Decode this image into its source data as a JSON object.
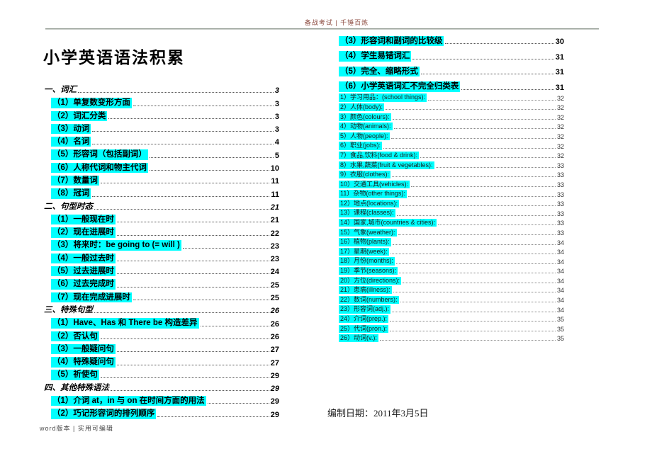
{
  "header": {
    "watermark": "备战考试 | 千锤百炼"
  },
  "title": "小学英语语法积累",
  "colors": {
    "highlight": "#00ffff",
    "watermark_text": "#8f4f44",
    "rule": "#969e96"
  },
  "toc": {
    "left": [
      {
        "kind": "section",
        "label": "一、词汇",
        "page": "3"
      },
      {
        "kind": "entry",
        "label": "（1）单复数变形方面",
        "page": "3"
      },
      {
        "kind": "entry",
        "label": "（2）词汇分类",
        "page": "3"
      },
      {
        "kind": "entry",
        "label": "（3）动词",
        "page": "3"
      },
      {
        "kind": "entry",
        "label": "（4）名词",
        "page": "4"
      },
      {
        "kind": "entry",
        "label": "（5）形容词（包括副词）",
        "page": "5"
      },
      {
        "kind": "entry",
        "label": "（6）人称代词和物主代词",
        "page": "10"
      },
      {
        "kind": "entry",
        "label": "（7）数量词",
        "page": "11"
      },
      {
        "kind": "entry",
        "label": "（8）冠词",
        "page": "11"
      },
      {
        "kind": "section",
        "label": "二、句型时态",
        "page": "21"
      },
      {
        "kind": "entry",
        "label": "（1）一般现在时",
        "page": "21"
      },
      {
        "kind": "entry",
        "label": "（2）现在进展时",
        "page": "22"
      },
      {
        "kind": "entry",
        "label": "（3）将来时：be going to (= will )",
        "page": "23"
      },
      {
        "kind": "entry",
        "label": "（4）一般过去时",
        "page": "23"
      },
      {
        "kind": "entry",
        "label": "（5）过去进展时",
        "page": "24"
      },
      {
        "kind": "entry",
        "label": "（6）过去完成时",
        "page": "25"
      },
      {
        "kind": "entry",
        "label": "（7）现在完成进展时",
        "page": "25"
      },
      {
        "kind": "section",
        "label": "三、特殊句型",
        "page": "26"
      },
      {
        "kind": "entry",
        "label": "（1）Have、Has 和 There be 构造差异",
        "page": "26"
      },
      {
        "kind": "entry",
        "label": "（2）否认句",
        "page": "26"
      },
      {
        "kind": "entry",
        "label": "（3）一般疑问句",
        "page": "27"
      },
      {
        "kind": "entry",
        "label": "（4）特殊疑问句",
        "page": "27"
      },
      {
        "kind": "entry",
        "label": "（5）祈使句",
        "page": "29"
      },
      {
        "kind": "section",
        "label": "四、其他特殊语法",
        "page": "29"
      },
      {
        "kind": "entry",
        "label": "（1）介词 at，in 与 on 在时间方面的用法",
        "page": "29"
      },
      {
        "kind": "entry",
        "label": "（2）巧记形容词的排列顺序",
        "page": "29"
      }
    ],
    "right": [
      {
        "kind": "entry",
        "label": "（3）形容词和副词的比较级",
        "page": "30"
      },
      {
        "kind": "entry",
        "label": "（4）学生易错词汇",
        "page": "31"
      },
      {
        "kind": "entry",
        "label": "（5）完全、缩略形式",
        "page": "31"
      },
      {
        "kind": "entry",
        "label": "（6）小学英语词汇不完全归类表",
        "page": "31"
      }
    ],
    "sub": [
      {
        "kind": "sub",
        "label": "1）学习用品：(school things):",
        "page": "32"
      },
      {
        "kind": "sub",
        "label": "2）人体(body):",
        "page": "32"
      },
      {
        "kind": "sub",
        "label": "3）颜色(colours):",
        "page": "32"
      },
      {
        "kind": "sub",
        "label": "4）动物(animals):",
        "page": "32"
      },
      {
        "kind": "sub",
        "label": "5）人物(people):",
        "page": "32"
      },
      {
        "kind": "sub",
        "label": "6）职业(jobs):",
        "page": "32"
      },
      {
        "kind": "sub",
        "label": "7）食品,饮料(food & drink):",
        "page": "32"
      },
      {
        "kind": "sub",
        "label": "8）水果,蔬菜(fruit & vegetables):",
        "page": "33"
      },
      {
        "kind": "sub",
        "label": "9）衣服(clothes):",
        "page": "33"
      },
      {
        "kind": "sub",
        "label": "10）交通工具(vehicles):",
        "page": "33"
      },
      {
        "kind": "sub",
        "label": "11）杂物(other things):",
        "page": "33"
      },
      {
        "kind": "sub",
        "label": "12）地点(locations):",
        "page": "33"
      },
      {
        "kind": "sub",
        "label": "13）课程(classes):",
        "page": "33"
      },
      {
        "kind": "sub",
        "label": "14）国家,城市(countries & cities):",
        "page": "33"
      },
      {
        "kind": "sub",
        "label": "15）气象(weather):",
        "page": "33"
      },
      {
        "kind": "sub",
        "label": "16）植物(plants):",
        "page": "34"
      },
      {
        "kind": "sub",
        "label": "17）星期(week):",
        "page": "34"
      },
      {
        "kind": "sub",
        "label": "18）月份(months):",
        "page": "34"
      },
      {
        "kind": "sub",
        "label": "19）季节(seasons):",
        "page": "34"
      },
      {
        "kind": "sub",
        "label": "20）方位(directions):",
        "page": "34"
      },
      {
        "kind": "sub",
        "label": "21）患病(illness):",
        "page": "34"
      },
      {
        "kind": "sub",
        "label": "22）数词(numbers):",
        "page": "34"
      },
      {
        "kind": "sub",
        "label": "23）形容词(adj.):",
        "page": "34"
      },
      {
        "kind": "sub",
        "label": "24）介词(prep.):",
        "page": "35"
      },
      {
        "kind": "sub",
        "label": "25）代词(pron.):",
        "page": "35"
      },
      {
        "kind": "sub",
        "label": "26）动词(v.):",
        "page": "35"
      }
    ]
  },
  "date_line": "编制日期：2011年3月5日",
  "footer": {
    "note": "word版本 | 实用可编辑"
  }
}
